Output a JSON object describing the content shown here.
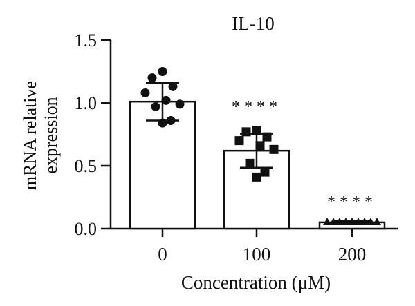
{
  "chart_data": {
    "type": "bar",
    "title": "IL-10",
    "xlabel": "Concentration (μM)",
    "ylabel_lines": [
      "mRNA relative",
      "expression"
    ],
    "ylim": [
      0,
      1.5
    ],
    "yticks": [
      0.0,
      0.5,
      1.0,
      1.5
    ],
    "ytick_labels": [
      "0.0",
      "0.5",
      "1.0",
      "1.5"
    ],
    "categories": [
      "0",
      "100",
      "200"
    ],
    "values": [
      1.01,
      0.62,
      0.05
    ],
    "sd": [
      0.15,
      0.135,
      0.01
    ],
    "significance": [
      "",
      "****",
      "****"
    ],
    "marker_shapes": [
      "circle",
      "square",
      "triangle"
    ],
    "points": [
      [
        1.25,
        1.2,
        1.13,
        1.08,
        1.02,
        0.99,
        0.97,
        0.86,
        0.84
      ],
      [
        0.78,
        0.77,
        0.73,
        0.7,
        0.66,
        0.63,
        0.52,
        0.45,
        0.41
      ],
      [
        0.055,
        0.055,
        0.055,
        0.055,
        0.055,
        0.055,
        0.055,
        0.055,
        0.055
      ]
    ],
    "grid": false,
    "colors": {
      "bar_fill": "#ffffff",
      "bar_stroke": "#111111",
      "marker": "#111111",
      "axis": "#111111"
    }
  }
}
